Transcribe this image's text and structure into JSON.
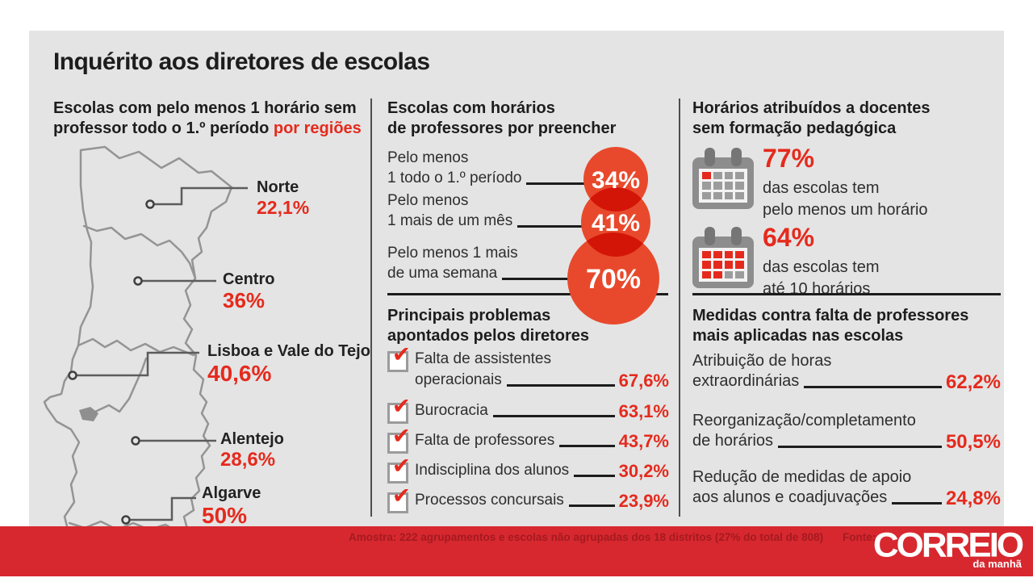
{
  "title": "Inquérito aos diretores de escolas",
  "colors": {
    "accent_red": "#e52a1d",
    "circle_red": "#e8492c",
    "bar_red": "#d7282f",
    "panel_gray": "#e4e4e4",
    "map_gray": "#949494"
  },
  "icons": {
    "check_glyph": "✔"
  },
  "map_section": {
    "heading_line1": "Escolas com pelo menos 1 horário sem",
    "heading_line2": "professor todo o 1.º período ",
    "heading_accent": "por regiões",
    "regions": [
      {
        "name": "Norte",
        "value": "22,1%"
      },
      {
        "name": "Centro",
        "value": "36%"
      },
      {
        "name": "Lisboa e Vale do Tejo",
        "value": "40,6%"
      },
      {
        "name": "Alentejo",
        "value": "28,6%"
      },
      {
        "name": "Algarve",
        "value": "50%"
      }
    ]
  },
  "vacancies": {
    "heading_line1": "Escolas com horários",
    "heading_line2": "de professores por preencher",
    "items": [
      {
        "label_line1": "Pelo menos",
        "label_line2": "1 todo o 1.º período",
        "value": "34%"
      },
      {
        "label_line1": "Pelo menos",
        "label_line2": "1 mais de um mês",
        "value": "41%"
      },
      {
        "label_line1": "Pelo menos 1 mais",
        "label_line2": "de uma semana",
        "value": "70%"
      }
    ]
  },
  "problems": {
    "heading_line1": "Principais problemas",
    "heading_line2": "apontados pelos diretores",
    "items": [
      {
        "label_line1": "Falta de assistentes",
        "label_line2": "operacionais",
        "value": "67,6%"
      },
      {
        "label": "Burocracia",
        "value": "63,1%"
      },
      {
        "label": "Falta de professores",
        "value": "43,7%"
      },
      {
        "label": "Indisciplina dos alunos",
        "value": "30,2%"
      },
      {
        "label": "Processos concursais",
        "value": "23,9%"
      }
    ]
  },
  "no_training": {
    "heading_line1": "Horários atribuídos a docentes",
    "heading_line2": "sem formação pedagógica",
    "items": [
      {
        "value": "77%",
        "desc_line1": "das escolas tem",
        "desc_line2": "pelo menos um horário",
        "calendar_cells": [
          1,
          0,
          0,
          0,
          0,
          0,
          0,
          0,
          0,
          0,
          0,
          0
        ]
      },
      {
        "value": "64%",
        "desc_line1": "das escolas tem",
        "desc_line2": "até 10 horários",
        "calendar_cells": [
          1,
          1,
          1,
          1,
          1,
          1,
          1,
          1,
          1,
          1,
          0,
          0
        ]
      }
    ]
  },
  "measures": {
    "heading_line1": "Medidas contra falta de professores",
    "heading_line2": "mais aplicadas nas escolas",
    "items": [
      {
        "label_line1": "Atribuição de horas",
        "label_line2": "extraordinárias",
        "value": "62,2%"
      },
      {
        "label_line1": "Reorganização/completamento",
        "label_line2": "de horários",
        "value": "50,5%"
      },
      {
        "label_line1": "Redução de medidas de apoio",
        "label_line2": "aos alunos e coadjuvações",
        "value": "24,8%"
      }
    ]
  },
  "footer": {
    "sample": "Amostra: 222 agrupamentos e escolas não agrupadas dos 18 distritos (27% do total de 808)",
    "source_label": "Fonte:",
    "logo_main": "CORREIO",
    "logo_sub": "da manhã"
  },
  "chart_data": [
    {
      "type": "map",
      "title": "Escolas com pelo menos 1 horário sem professor todo o 1.º período por regiões",
      "categories": [
        "Norte",
        "Centro",
        "Lisboa e Vale do Tejo",
        "Alentejo",
        "Algarve"
      ],
      "values": [
        22.1,
        36,
        40.6,
        28.6,
        50
      ],
      "unit": "%"
    },
    {
      "type": "bubble",
      "title": "Escolas com horários de professores por preencher",
      "categories": [
        "Pelo menos 1 todo o 1.º período",
        "Pelo menos 1 mais de um mês",
        "Pelo menos 1 mais de uma semana"
      ],
      "values": [
        34,
        41,
        70
      ],
      "unit": "%"
    },
    {
      "type": "table",
      "title": "Principais problemas apontados pelos diretores",
      "categories": [
        "Falta de assistentes operacionais",
        "Burocracia",
        "Falta de professores",
        "Indisciplina dos alunos",
        "Processos concursais"
      ],
      "values": [
        67.6,
        63.1,
        43.7,
        30.2,
        23.9
      ],
      "unit": "%"
    },
    {
      "type": "table",
      "title": "Horários atribuídos a docentes sem formação pedagógica",
      "categories": [
        "das escolas tem pelo menos um horário",
        "das escolas tem até 10 horários"
      ],
      "values": [
        77,
        64
      ],
      "unit": "%"
    },
    {
      "type": "table",
      "title": "Medidas contra falta de professores mais aplicadas nas escolas",
      "categories": [
        "Atribuição de horas extraordinárias",
        "Reorganização/completamento de horários",
        "Redução de medidas de apoio aos alunos e coadjuvações"
      ],
      "values": [
        62.2,
        50.5,
        24.8
      ],
      "unit": "%"
    }
  ]
}
